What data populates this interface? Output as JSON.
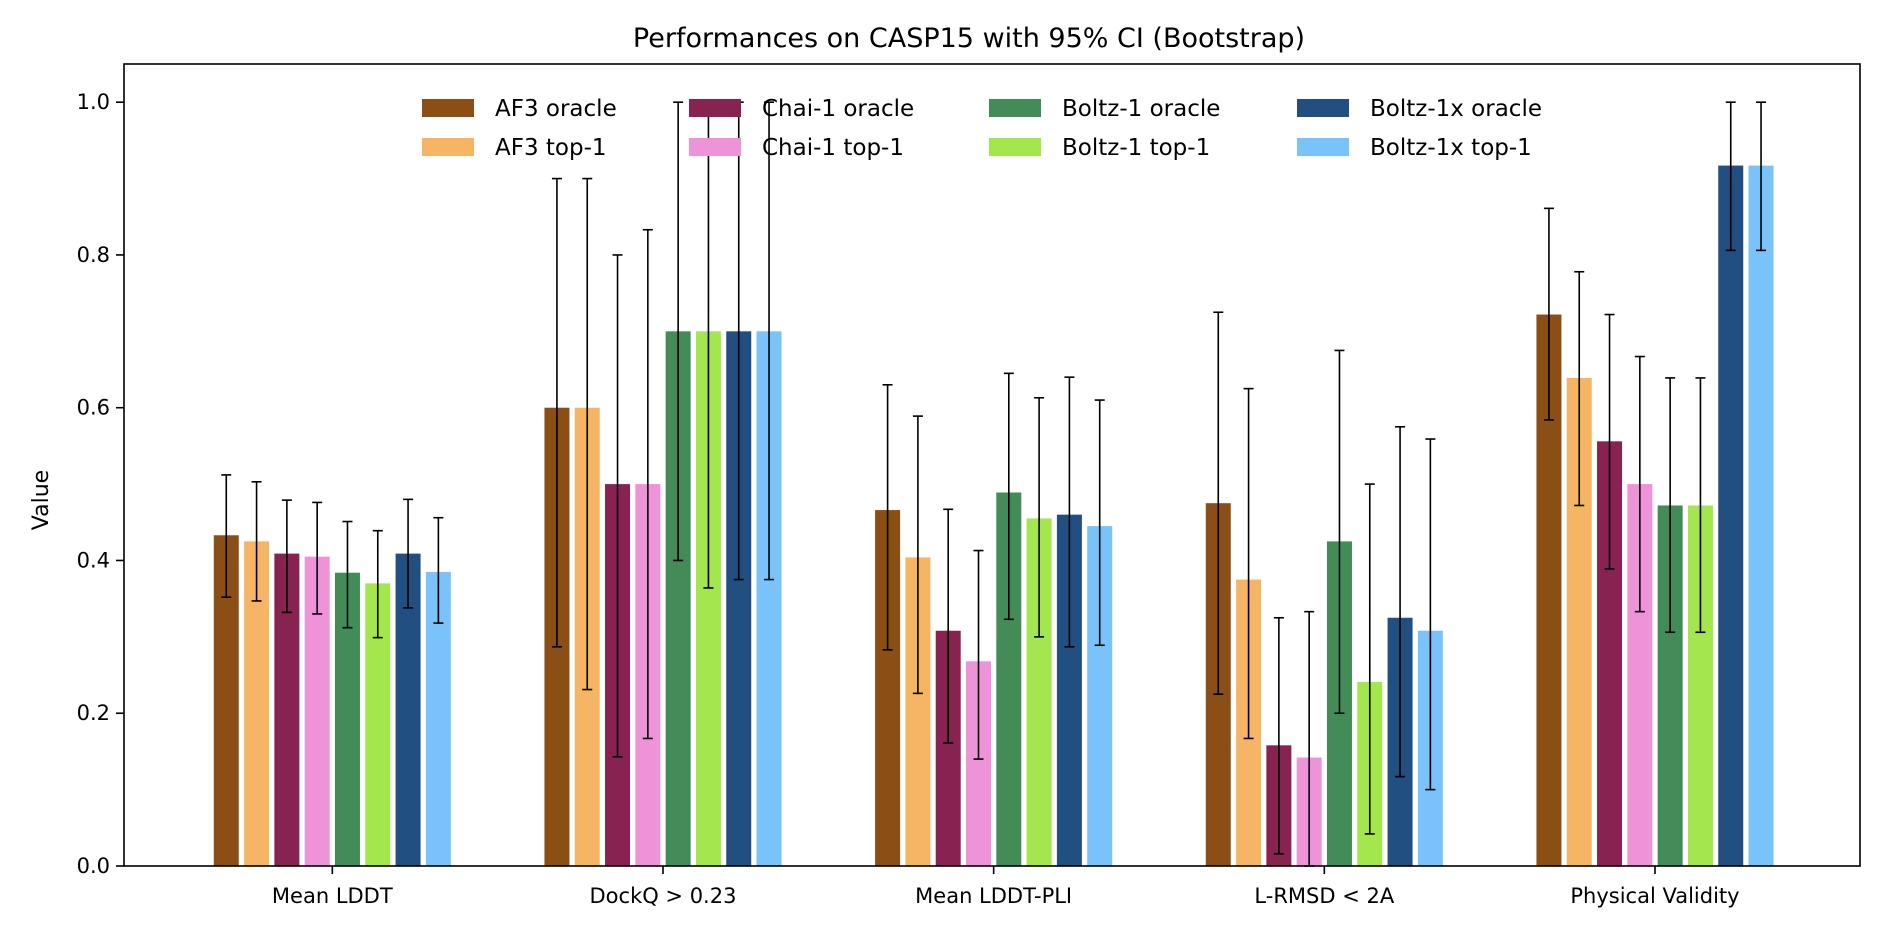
{
  "chart_data": {
    "type": "bar",
    "title": "Performances on CASP15 with 95% CI (Bootstrap)",
    "xlabel": "",
    "ylabel": "Value",
    "ylim": [
      0,
      1.05
    ],
    "yticks": [
      "0.0",
      "0.2",
      "0.4",
      "0.6",
      "0.8",
      "1.0"
    ],
    "ytick_values": [
      0.0,
      0.2,
      0.4,
      0.6,
      0.8,
      1.0
    ],
    "categories": [
      "Mean LDDT",
      "DockQ > 0.23",
      "Mean LDDT-PLI",
      "L-RMSD < 2A",
      "Physical Validity"
    ],
    "legend_placement": "top-center",
    "legend_columns": 4,
    "series": [
      {
        "name": "AF3 oracle",
        "color": "#8B4F16",
        "values": [
          0.433,
          0.6,
          0.466,
          0.475,
          0.722
        ],
        "ci_low": [
          0.352,
          0.287,
          0.283,
          0.225,
          0.584
        ],
        "ci_high": [
          0.512,
          0.9,
          0.63,
          0.725,
          0.861
        ]
      },
      {
        "name": "AF3 top-1",
        "color": "#F5B565",
        "values": [
          0.425,
          0.6,
          0.404,
          0.375,
          0.639
        ],
        "ci_low": [
          0.347,
          0.231,
          0.226,
          0.167,
          0.472
        ],
        "ci_high": [
          0.503,
          0.9,
          0.589,
          0.625,
          0.778
        ]
      },
      {
        "name": "Chai-1 oracle",
        "color": "#872251",
        "values": [
          0.409,
          0.5,
          0.308,
          0.158,
          0.556
        ],
        "ci_low": [
          0.332,
          0.143,
          0.161,
          0.016,
          0.389
        ],
        "ci_high": [
          0.479,
          0.8,
          0.467,
          0.325,
          0.722
        ]
      },
      {
        "name": "Chai-1 top-1",
        "color": "#EE93D8",
        "values": [
          0.405,
          0.5,
          0.268,
          0.142,
          0.5
        ],
        "ci_low": [
          0.33,
          0.167,
          0.14,
          0.0,
          0.333
        ],
        "ci_high": [
          0.476,
          0.833,
          0.413,
          0.333,
          0.667
        ]
      },
      {
        "name": "Boltz-1 oracle",
        "color": "#448C57",
        "values": [
          0.384,
          0.7,
          0.489,
          0.425,
          0.472
        ],
        "ci_low": [
          0.312,
          0.4,
          0.323,
          0.2,
          0.306
        ],
        "ci_high": [
          0.451,
          1.0,
          0.645,
          0.675,
          0.639
        ]
      },
      {
        "name": "Boltz-1 top-1",
        "color": "#A3E64E",
        "values": [
          0.37,
          0.7,
          0.455,
          0.241,
          0.472
        ],
        "ci_low": [
          0.299,
          0.364,
          0.3,
          0.042,
          0.306
        ],
        "ci_high": [
          0.439,
          1.0,
          0.613,
          0.5,
          0.639
        ]
      },
      {
        "name": "Boltz-1x oracle",
        "color": "#214F81",
        "values": [
          0.409,
          0.7,
          0.46,
          0.325,
          0.917
        ],
        "ci_low": [
          0.338,
          0.375,
          0.287,
          0.117,
          0.806
        ],
        "ci_high": [
          0.48,
          1.0,
          0.64,
          0.575,
          1.0
        ]
      },
      {
        "name": "Boltz-1x top-1",
        "color": "#79C2FA",
        "values": [
          0.385,
          0.7,
          0.445,
          0.308,
          0.917
        ],
        "ci_low": [
          0.318,
          0.375,
          0.289,
          0.1,
          0.806
        ],
        "ci_high": [
          0.456,
          1.0,
          0.61,
          0.559,
          1.0
        ]
      }
    ]
  }
}
